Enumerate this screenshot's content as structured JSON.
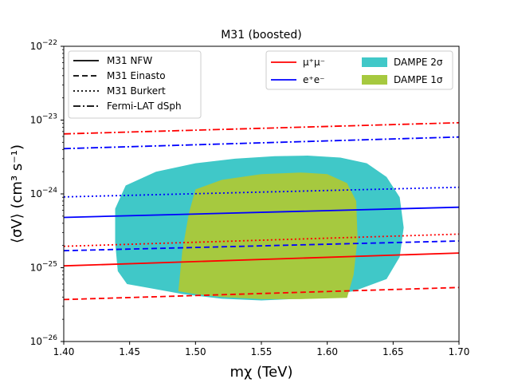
{
  "chart_data": {
    "type": "line",
    "title": "M31 (boosted)",
    "xlabel": "mχ (TeV)",
    "ylabel": "⟨σV⟩ (cm³ s⁻¹)",
    "xlim": [
      1.4,
      1.7
    ],
    "ylim_log10": [
      -26,
      -22
    ],
    "yscale": "log",
    "x_ticks": [
      1.4,
      1.45,
      1.5,
      1.55,
      1.6,
      1.65,
      1.7
    ],
    "x_tick_labels": [
      "1.40",
      "1.45",
      "1.50",
      "1.55",
      "1.60",
      "1.65",
      "1.70"
    ],
    "y_ticks_log10": [
      -26,
      -25,
      -24,
      -23,
      -22
    ],
    "y_tick_bases": [
      "10",
      "10",
      "10",
      "10",
      "10"
    ],
    "y_tick_exponents": [
      "−26",
      "−25",
      "−24",
      "−23",
      "−22"
    ],
    "series": [
      {
        "name": "Fermi-LAT dSph μ+μ−",
        "channel": "mumu",
        "profile": "fermi",
        "x": [
          1.4,
          1.7
        ],
        "y": [
          6.5e-24,
          9.2e-24
        ]
      },
      {
        "name": "Fermi-LAT dSph e+e−",
        "channel": "ee",
        "profile": "fermi",
        "x": [
          1.4,
          1.7
        ],
        "y": [
          4.1e-24,
          5.9e-24
        ]
      },
      {
        "name": "M31 Burkert e+e−",
        "channel": "ee",
        "profile": "burkert",
        "x": [
          1.4,
          1.7
        ],
        "y": [
          9.1e-25,
          1.23e-24
        ]
      },
      {
        "name": "M31 NFW e+e−",
        "channel": "ee",
        "profile": "nfw",
        "x": [
          1.4,
          1.7
        ],
        "y": [
          4.8e-25,
          6.6e-25
        ]
      },
      {
        "name": "M31 Burkert μ+μ−",
        "channel": "mumu",
        "profile": "burkert",
        "x": [
          1.4,
          1.7
        ],
        "y": [
          1.95e-25,
          2.85e-25
        ]
      },
      {
        "name": "M31 Einasto e+e−",
        "channel": "ee",
        "profile": "einasto",
        "x": [
          1.4,
          1.7
        ],
        "y": [
          1.7e-25,
          2.3e-25
        ]
      },
      {
        "name": "M31 NFW μ+μ−",
        "channel": "mumu",
        "profile": "nfw",
        "x": [
          1.4,
          1.7
        ],
        "y": [
          1.06e-25,
          1.58e-25
        ]
      },
      {
        "name": "M31 Einasto μ+μ−",
        "channel": "mumu",
        "profile": "einasto",
        "x": [
          1.4,
          1.7
        ],
        "y": [
          3.7e-26,
          5.4e-26
        ]
      }
    ],
    "regions": [
      {
        "name": "DAMPE 2σ",
        "color": "#40c8c8",
        "points": [
          [
            1.439,
            6.3e-25
          ],
          [
            1.447,
            1.3e-24
          ],
          [
            1.47,
            2e-24
          ],
          [
            1.5,
            2.6e-24
          ],
          [
            1.53,
            3e-24
          ],
          [
            1.56,
            3.25e-24
          ],
          [
            1.585,
            3.3e-24
          ],
          [
            1.61,
            3.1e-24
          ],
          [
            1.63,
            2.6e-24
          ],
          [
            1.645,
            1.7e-24
          ],
          [
            1.655,
            9e-25
          ],
          [
            1.658,
            3.5e-25
          ],
          [
            1.655,
            1.4e-25
          ],
          [
            1.645,
            7e-26
          ],
          [
            1.62,
            4.8e-26
          ],
          [
            1.58,
            3.8e-26
          ],
          [
            1.55,
            3.6e-26
          ],
          [
            1.52,
            3.8e-26
          ],
          [
            1.49,
            4.4e-26
          ],
          [
            1.465,
            5.3e-26
          ],
          [
            1.448,
            6e-26
          ],
          [
            1.441,
            9e-26
          ],
          [
            1.439,
            2.2e-25
          ]
        ]
      },
      {
        "name": "DAMPE 1σ",
        "color": "#a6c93f",
        "points": [
          [
            1.487,
            4.8e-26
          ],
          [
            1.49,
            1.7e-25
          ],
          [
            1.495,
            5.5e-25
          ],
          [
            1.5,
            1.15e-24
          ],
          [
            1.52,
            1.55e-24
          ],
          [
            1.55,
            1.85e-24
          ],
          [
            1.58,
            1.95e-24
          ],
          [
            1.6,
            1.85e-24
          ],
          [
            1.615,
            1.4e-24
          ],
          [
            1.622,
            8e-25
          ],
          [
            1.623,
            2.5e-25
          ],
          [
            1.62,
            8e-26
          ],
          [
            1.615,
            3.9e-26
          ],
          [
            1.58,
            3.75e-26
          ],
          [
            1.55,
            3.75e-26
          ],
          [
            1.52,
            4e-26
          ],
          [
            1.5,
            4.4e-26
          ]
        ]
      }
    ],
    "colors": {
      "mumu": "#ff0000",
      "ee": "#0000ff",
      "dampe2": "#40c8c8",
      "dampe1": "#a6c93f"
    },
    "legend_profiles": {
      "location": "upper-left",
      "entries": [
        {
          "label": "M31 NFW",
          "style": "solid"
        },
        {
          "label": "M31 Einasto",
          "style": "dashed"
        },
        {
          "label": "M31 Burkert",
          "style": "dotted"
        },
        {
          "label": "Fermi-LAT dSph",
          "style": "dashdot"
        }
      ]
    },
    "legend_channels": {
      "location": "upper-right",
      "line_entries": [
        {
          "label": "μ⁺μ⁻",
          "channel": "mumu"
        },
        {
          "label": "e⁺e⁻",
          "channel": "ee"
        }
      ],
      "patch_entries": [
        {
          "label": "DAMPE 2σ",
          "region": "dampe2"
        },
        {
          "label": "DAMPE 1σ",
          "region": "dampe1"
        }
      ]
    }
  }
}
